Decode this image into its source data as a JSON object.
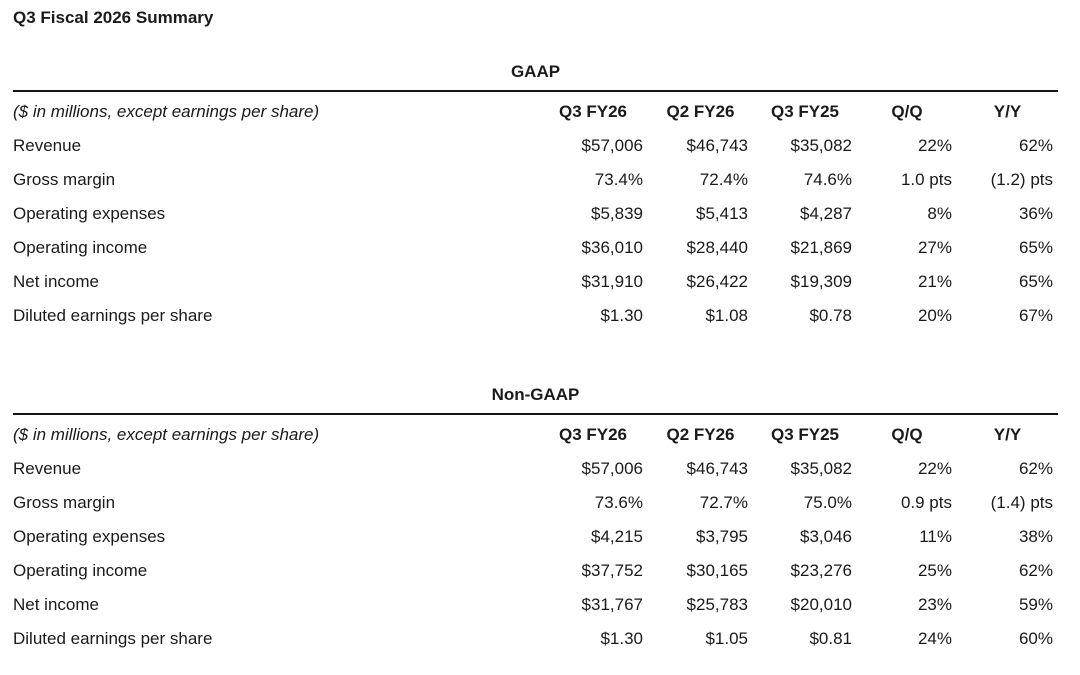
{
  "page": {
    "title": "Q3 Fiscal 2026 Summary"
  },
  "tables": [
    {
      "section": "GAAP",
      "note": "($ in millions, except earnings per share)",
      "columns": [
        "Q3 FY26",
        "Q2 FY26",
        "Q3 FY25",
        "Q/Q",
        "Y/Y"
      ],
      "rows": [
        {
          "label": "Revenue",
          "values": [
            "$57,006",
            "$46,743",
            "$35,082",
            "22%",
            "62%"
          ]
        },
        {
          "label": "Gross margin",
          "values": [
            "73.4%",
            "72.4%",
            "74.6%",
            "1.0 pts",
            "(1.2) pts"
          ]
        },
        {
          "label": "Operating expenses",
          "values": [
            "$5,839",
            "$5,413",
            "$4,287",
            "8%",
            "36%"
          ]
        },
        {
          "label": "Operating income",
          "values": [
            "$36,010",
            "$28,440",
            "$21,869",
            "27%",
            "65%"
          ]
        },
        {
          "label": "Net income",
          "values": [
            "$31,910",
            "$26,422",
            "$19,309",
            "21%",
            "65%"
          ]
        },
        {
          "label": "Diluted earnings per share",
          "values": [
            "$1.30",
            "$1.08",
            "$0.78",
            "20%",
            "67%"
          ]
        }
      ]
    },
    {
      "section": "Non-GAAP",
      "note": "($ in millions, except earnings per share)",
      "columns": [
        "Q3 FY26",
        "Q2 FY26",
        "Q3 FY25",
        "Q/Q",
        "Y/Y"
      ],
      "rows": [
        {
          "label": "Revenue",
          "values": [
            "$57,006",
            "$46,743",
            "$35,082",
            "22%",
            "62%"
          ]
        },
        {
          "label": "Gross margin",
          "values": [
            "73.6%",
            "72.7%",
            "75.0%",
            "0.9 pts",
            "(1.4) pts"
          ]
        },
        {
          "label": "Operating expenses",
          "values": [
            "$4,215",
            "$3,795",
            "$3,046",
            "11%",
            "38%"
          ]
        },
        {
          "label": "Operating income",
          "values": [
            "$37,752",
            "$30,165",
            "$23,276",
            "25%",
            "62%"
          ]
        },
        {
          "label": "Net income",
          "values": [
            "$31,767",
            "$25,783",
            "$20,010",
            "23%",
            "59%"
          ]
        },
        {
          "label": "Diluted earnings per share",
          "values": [
            "$1.30",
            "$1.05",
            "$0.81",
            "24%",
            "60%"
          ]
        }
      ]
    }
  ]
}
